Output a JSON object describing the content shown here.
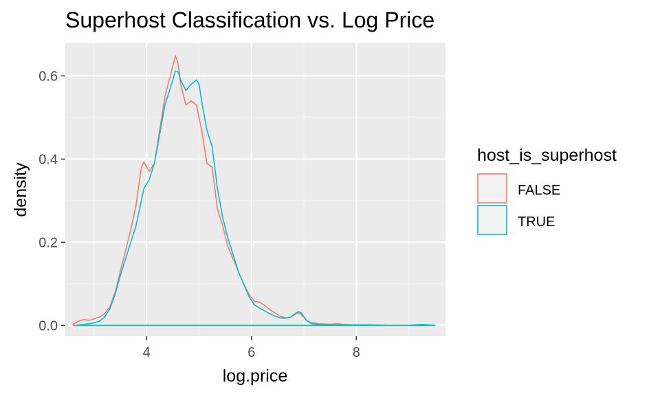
{
  "chart_data": {
    "type": "line",
    "title": "Superhost Classification vs. Log Price",
    "xlabel": "log.price",
    "ylabel": "density",
    "xlim": [
      2.45,
      9.7
    ],
    "ylim": [
      -0.026,
      0.68
    ],
    "x_ticks": [
      4,
      6,
      8
    ],
    "x_tick_labels": [
      "4",
      "6",
      "8"
    ],
    "y_ticks": [
      0.0,
      0.2,
      0.4,
      0.6
    ],
    "y_tick_labels": [
      "0.0",
      "0.2",
      "0.4",
      "0.6"
    ],
    "x_minor_ticks": [
      3,
      5,
      7,
      9
    ],
    "y_minor_ticks": [
      0.1,
      0.3,
      0.5
    ],
    "grid": true,
    "panel_background": "#ebebeb",
    "legend": {
      "title": "host_is_superhost",
      "position": "right",
      "entries": [
        "FALSE",
        "TRUE"
      ]
    },
    "series": [
      {
        "name": "FALSE",
        "color": "#f8766d",
        "x": [
          2.6,
          2.7,
          2.8,
          2.9,
          3.0,
          3.1,
          3.2,
          3.3,
          3.4,
          3.5,
          3.6,
          3.7,
          3.8,
          3.9,
          3.95,
          4.05,
          4.15,
          4.25,
          4.35,
          4.45,
          4.55,
          4.6,
          4.65,
          4.75,
          4.85,
          4.95,
          5.05,
          5.15,
          5.25,
          5.35,
          5.45,
          5.55,
          5.65,
          5.75,
          5.85,
          5.95,
          6.05,
          6.15,
          6.25,
          6.35,
          6.45,
          6.55,
          6.65,
          6.75,
          6.85,
          6.9,
          6.95,
          7.05,
          7.15,
          7.3,
          7.5,
          7.65,
          7.8,
          8.0,
          8.3,
          8.6,
          9.0,
          9.3,
          9.5
        ],
        "y": [
          0.003,
          0.01,
          0.014,
          0.012,
          0.016,
          0.02,
          0.028,
          0.045,
          0.08,
          0.13,
          0.18,
          0.23,
          0.29,
          0.38,
          0.393,
          0.37,
          0.39,
          0.47,
          0.55,
          0.6,
          0.648,
          0.63,
          0.58,
          0.53,
          0.54,
          0.53,
          0.47,
          0.39,
          0.38,
          0.28,
          0.24,
          0.19,
          0.16,
          0.13,
          0.1,
          0.075,
          0.058,
          0.056,
          0.048,
          0.038,
          0.03,
          0.022,
          0.018,
          0.02,
          0.028,
          0.03,
          0.026,
          0.012,
          0.006,
          0.004,
          0.003,
          0.004,
          0.002,
          0.001,
          0.001,
          0.0,
          0.0,
          0.0,
          0.0
        ]
      },
      {
        "name": "TRUE",
        "color": "#00bfc4",
        "x": [
          2.65,
          2.8,
          2.9,
          3.0,
          3.1,
          3.2,
          3.3,
          3.4,
          3.5,
          3.6,
          3.7,
          3.8,
          3.9,
          3.95,
          4.05,
          4.15,
          4.25,
          4.35,
          4.45,
          4.55,
          4.6,
          4.65,
          4.75,
          4.85,
          4.95,
          5.0,
          5.05,
          5.15,
          5.25,
          5.35,
          5.45,
          5.55,
          5.65,
          5.75,
          5.85,
          5.95,
          6.05,
          6.15,
          6.25,
          6.35,
          6.45,
          6.55,
          6.65,
          6.75,
          6.85,
          6.9,
          6.95,
          7.05,
          7.15,
          7.3,
          7.5,
          7.7,
          8.0,
          8.3,
          8.6,
          9.0,
          9.2,
          9.3,
          9.5
        ],
        "y": [
          0.0,
          0.002,
          0.004,
          0.006,
          0.01,
          0.02,
          0.04,
          0.075,
          0.12,
          0.16,
          0.2,
          0.24,
          0.3,
          0.33,
          0.35,
          0.39,
          0.46,
          0.53,
          0.57,
          0.612,
          0.61,
          0.59,
          0.565,
          0.58,
          0.59,
          0.58,
          0.54,
          0.47,
          0.43,
          0.33,
          0.26,
          0.21,
          0.17,
          0.13,
          0.1,
          0.07,
          0.05,
          0.042,
          0.035,
          0.028,
          0.022,
          0.018,
          0.017,
          0.02,
          0.03,
          0.033,
          0.03,
          0.012,
          0.004,
          0.002,
          0.001,
          0.001,
          0.001,
          0.001,
          0.0,
          0.0,
          0.002,
          0.002,
          0.0
        ]
      }
    ]
  }
}
